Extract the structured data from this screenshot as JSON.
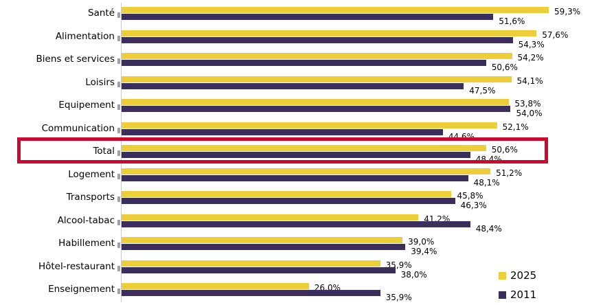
{
  "chart_data": {
    "type": "bar",
    "orientation": "horizontal",
    "title": "",
    "xlabel": "",
    "ylabel": "",
    "grid": false,
    "xlim": [
      0,
      62
    ],
    "legend_position": "bottom-right",
    "categories": [
      "Santé",
      "Alimentation",
      "Biens et services",
      "Loisirs",
      "Equipement",
      "Communication",
      "Total",
      "Logement",
      "Transports",
      "Alcool-tabac",
      "Habillement",
      "Hôtel-restaurant",
      "Enseignement"
    ],
    "series": [
      {
        "name": "2025",
        "color": "#edce38",
        "values": [
          59.3,
          57.6,
          54.2,
          54.1,
          53.8,
          52.1,
          50.6,
          51.2,
          45.8,
          41.2,
          39.0,
          35.9,
          26.0
        ],
        "labels": [
          "59,3%",
          "57,6%",
          "54,2%",
          "54,1%",
          "53,8%",
          "52,1%",
          "50,6%",
          "51,2%",
          "45,8%",
          "41,2%",
          "39,0%",
          "35,9%",
          "26,0%"
        ]
      },
      {
        "name": "2011",
        "color": "#3b2d5c",
        "values": [
          51.6,
          54.3,
          50.6,
          47.5,
          54.0,
          44.6,
          48.4,
          48.1,
          46.3,
          48.4,
          39.4,
          38.0,
          35.9
        ],
        "labels": [
          "51,6%",
          "54,3%",
          "50,6%",
          "47,5%",
          "54,0%",
          "44,6%",
          "48,4%",
          "48,1%",
          "46,3%",
          "48,4%",
          "39,4%",
          "38,0%",
          "35,9%"
        ]
      }
    ],
    "highlight": {
      "category": "Total",
      "row_index": 6,
      "color": "#c9092e"
    },
    "axis_color": "#c9c9c9",
    "tick_color": "#9fa0ad"
  }
}
